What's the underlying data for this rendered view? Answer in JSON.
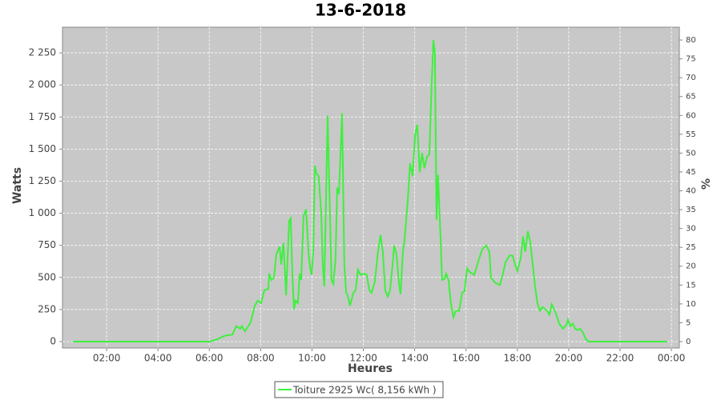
{
  "chart_data": {
    "type": "line",
    "title": "13-6-2018",
    "x_label": "Heures",
    "y_label": "Watts",
    "y2_label": "%",
    "xlim": [
      0.28,
      24.31
    ],
    "xticks": [
      {
        "value": 2,
        "label": "02:00"
      },
      {
        "value": 4,
        "label": "04:00"
      },
      {
        "value": 6,
        "label": "06:00"
      },
      {
        "value": 8,
        "label": "08:00"
      },
      {
        "value": 10,
        "label": "10:00"
      },
      {
        "value": 12,
        "label": "12:00"
      },
      {
        "value": 14,
        "label": "14:00"
      },
      {
        "value": 16,
        "label": "16:00"
      },
      {
        "value": 18,
        "label": "18:00"
      },
      {
        "value": 20,
        "label": "20:00"
      },
      {
        "value": 22,
        "label": "22:00"
      },
      {
        "value": 24,
        "label": "00:00"
      }
    ],
    "ylim": [
      -50,
      2450
    ],
    "yticks": [
      0,
      250,
      500,
      750,
      {
        "value": 1000,
        "label": "1 000"
      },
      {
        "value": 1250,
        "label": "1 250"
      },
      {
        "value": 1500,
        "label": "1 500"
      },
      {
        "value": 1750,
        "label": "1 750"
      },
      {
        "value": 2000,
        "label": "2 000"
      },
      {
        "value": 2250,
        "label": "2 250"
      }
    ],
    "y2lim": [
      -1.7,
      83.4
    ],
    "y2ticks": [
      0,
      5,
      10,
      15,
      20,
      25,
      30,
      35,
      40,
      45,
      50,
      55,
      60,
      65,
      70,
      75,
      80
    ],
    "grid": true,
    "legend": "bottom",
    "x": [
      0.69,
      5.65,
      6.02,
      6.33,
      6.58,
      6.9,
      7.05,
      7.21,
      7.27,
      7.39,
      7.61,
      7.77,
      7.89,
      8.02,
      8.14,
      8.3,
      8.33,
      8.42,
      8.52,
      8.61,
      8.74,
      8.8,
      8.89,
      8.99,
      9.11,
      9.17,
      9.24,
      9.3,
      9.36,
      9.45,
      9.52,
      9.58,
      9.67,
      9.77,
      9.86,
      9.92,
      9.98,
      10.05,
      10.11,
      10.17,
      10.26,
      10.36,
      10.42,
      10.48,
      10.61,
      10.7,
      10.76,
      10.83,
      10.92,
      10.98,
      11.05,
      11.17,
      11.26,
      11.33,
      11.39,
      11.48,
      11.61,
      11.7,
      11.79,
      11.89,
      12.04,
      12.14,
      12.23,
      12.32,
      12.45,
      12.57,
      12.67,
      12.76,
      12.85,
      12.95,
      13.04,
      13.14,
      13.2,
      13.29,
      13.39,
      13.45,
      13.54,
      13.6,
      13.73,
      13.82,
      13.92,
      14.01,
      14.1,
      14.2,
      14.29,
      14.38,
      14.48,
      14.57,
      14.66,
      14.73,
      14.79,
      14.85,
      14.91,
      15.01,
      15.07,
      15.16,
      15.23,
      15.32,
      15.41,
      15.51,
      15.6,
      15.73,
      15.85,
      15.94,
      16.04,
      16.16,
      16.32,
      16.47,
      16.63,
      16.79,
      16.91,
      16.97,
      17.13,
      17.32,
      17.44,
      17.54,
      17.69,
      17.82,
      17.91,
      18.0,
      18.13,
      18.22,
      18.31,
      18.41,
      18.5,
      18.6,
      18.69,
      18.78,
      18.88,
      18.97,
      19.16,
      19.25,
      19.34,
      19.5,
      19.63,
      19.78,
      19.91,
      19.97,
      20.06,
      20.16,
      20.25,
      20.34,
      20.44,
      20.56,
      20.66,
      20.78,
      23.84
    ],
    "series": [
      {
        "name": "Toiture 2925 Wc( 8,156 kWh )",
        "color": "#3ef03e",
        "values": [
          0,
          0,
          0,
          20,
          45,
          55,
          120,
          100,
          120,
          80,
          150,
          280,
          320,
          300,
          400,
          410,
          530,
          480,
          500,
          680,
          740,
          600,
          770,
          360,
          940,
          960,
          500,
          250,
          320,
          300,
          530,
          480,
          980,
          1030,
          700,
          580,
          520,
          700,
          1370,
          1310,
          1290,
          1000,
          600,
          430,
          1760,
          1000,
          480,
          450,
          650,
          1200,
          1150,
          1780,
          600,
          380,
          360,
          280,
          380,
          400,
          560,
          520,
          530,
          520,
          400,
          380,
          470,
          700,
          830,
          700,
          400,
          350,
          400,
          600,
          750,
          680,
          450,
          370,
          700,
          780,
          1100,
          1390,
          1290,
          1600,
          1690,
          1320,
          1470,
          1350,
          1440,
          1460,
          2000,
          2350,
          2250,
          950,
          1300,
          800,
          480,
          490,
          530,
          480,
          300,
          190,
          240,
          240,
          380,
          390,
          570,
          540,
          520,
          620,
          720,
          750,
          700,
          500,
          460,
          440,
          530,
          620,
          670,
          670,
          600,
          550,
          650,
          820,
          700,
          860,
          780,
          600,
          430,
          300,
          240,
          270,
          240,
          210,
          290,
          220,
          140,
          100,
          130,
          170,
          120,
          140,
          100,
          90,
          100,
          70,
          20,
          0,
          0
        ]
      }
    ]
  }
}
